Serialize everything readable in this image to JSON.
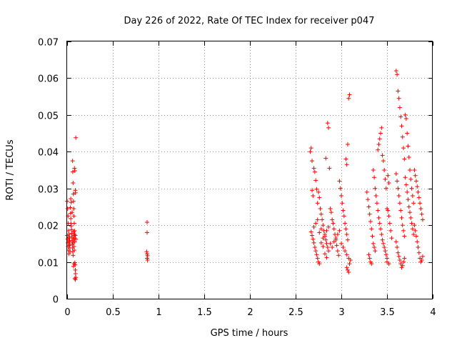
{
  "chart_data": {
    "type": "scatter",
    "title": "Day 226 of 2022, Rate Of TEC Index for receiver p047",
    "xlabel": "GPS time / hours",
    "ylabel": "ROTI / TECUs",
    "xlim": [
      0,
      4
    ],
    "ylim": [
      0,
      0.07
    ],
    "grid": true,
    "marker": "plus",
    "color": "#ff0000",
    "xticks": [
      {
        "value": 0,
        "label": "0"
      },
      {
        "value": 0.5,
        "label": "0.5"
      },
      {
        "value": 1,
        "label": "1"
      },
      {
        "value": 1.5,
        "label": "1.5"
      },
      {
        "value": 2,
        "label": "2"
      },
      {
        "value": 2.5,
        "label": "2.5"
      },
      {
        "value": 3,
        "label": "3"
      },
      {
        "value": 3.5,
        "label": "3.5"
      },
      {
        "value": 4,
        "label": "4"
      }
    ],
    "yticks": [
      {
        "value": 0,
        "label": "0"
      },
      {
        "value": 0.01,
        "label": "0.01"
      },
      {
        "value": 0.02,
        "label": "0.02"
      },
      {
        "value": 0.03,
        "label": "0.03"
      },
      {
        "value": 0.04,
        "label": "0.04"
      },
      {
        "value": 0.05,
        "label": "0.05"
      },
      {
        "value": 0.06,
        "label": "0.06"
      },
      {
        "value": 0.07,
        "label": "0.07"
      }
    ],
    "series": [
      {
        "name": "ROTI",
        "points": [
          [
            0.0,
            0.0265
          ],
          [
            0.005,
            0.0245
          ],
          [
            0.01,
            0.0225
          ],
          [
            0.012,
            0.0205
          ],
          [
            0.015,
            0.0185
          ],
          [
            0.02,
            0.0165
          ],
          [
            0.022,
            0.0155
          ],
          [
            0.025,
            0.0145
          ],
          [
            0.03,
            0.0138
          ],
          [
            0.032,
            0.0128
          ],
          [
            0.0,
            0.0172
          ],
          [
            0.005,
            0.0162
          ],
          [
            0.008,
            0.0152
          ],
          [
            0.01,
            0.0142
          ],
          [
            0.015,
            0.0132
          ],
          [
            0.018,
            0.0122
          ],
          [
            0.02,
            0.0175
          ],
          [
            0.025,
            0.0168
          ],
          [
            0.028,
            0.0158
          ],
          [
            0.03,
            0.0148
          ],
          [
            0.035,
            0.0248
          ],
          [
            0.038,
            0.0232
          ],
          [
            0.04,
            0.0218
          ],
          [
            0.042,
            0.0205
          ],
          [
            0.045,
            0.0198
          ],
          [
            0.048,
            0.0188
          ],
          [
            0.05,
            0.0178
          ],
          [
            0.052,
            0.0168
          ],
          [
            0.055,
            0.0158
          ],
          [
            0.058,
            0.0148
          ],
          [
            0.06,
            0.0138
          ],
          [
            0.062,
            0.0128
          ],
          [
            0.065,
            0.0152
          ],
          [
            0.068,
            0.0162
          ],
          [
            0.07,
            0.0172
          ],
          [
            0.072,
            0.0182
          ],
          [
            0.075,
            0.0142
          ],
          [
            0.078,
            0.0132
          ],
          [
            0.08,
            0.0165
          ],
          [
            0.083,
            0.0155
          ],
          [
            0.06,
            0.0375
          ],
          [
            0.062,
            0.0345
          ],
          [
            0.065,
            0.0315
          ],
          [
            0.068,
            0.0285
          ],
          [
            0.07,
            0.0265
          ],
          [
            0.073,
            0.0245
          ],
          [
            0.075,
            0.0225
          ],
          [
            0.078,
            0.0205
          ],
          [
            0.08,
            0.0185
          ],
          [
            0.082,
            0.0175
          ],
          [
            0.08,
            0.0355
          ],
          [
            0.085,
            0.0348
          ],
          [
            0.09,
            0.0295
          ],
          [
            0.092,
            0.0288
          ],
          [
            0.095,
            0.0438
          ],
          [
            0.085,
            0.0098
          ],
          [
            0.088,
            0.0092
          ],
          [
            0.09,
            0.0078
          ],
          [
            0.092,
            0.0068
          ],
          [
            0.095,
            0.0058
          ],
          [
            0.085,
            0.0055
          ],
          [
            0.09,
            0.0052
          ],
          [
            0.075,
            0.0095
          ],
          [
            0.07,
            0.0088
          ],
          [
            0.065,
            0.0118
          ],
          [
            0.055,
            0.0235
          ],
          [
            0.045,
            0.0262
          ],
          [
            0.04,
            0.0272
          ],
          [
            0.09,
            0.0172
          ],
          [
            0.095,
            0.0162
          ],
          [
            0.875,
            0.0208
          ],
          [
            0.875,
            0.018
          ],
          [
            0.87,
            0.0128
          ],
          [
            0.875,
            0.0122
          ],
          [
            0.88,
            0.0117
          ],
          [
            0.875,
            0.011
          ],
          [
            0.88,
            0.0105
          ],
          [
            2.66,
            0.04
          ],
          [
            2.67,
            0.041
          ],
          [
            2.68,
            0.0375
          ],
          [
            2.7,
            0.0355
          ],
          [
            2.71,
            0.0345
          ],
          [
            2.72,
            0.0322
          ],
          [
            2.73,
            0.0298
          ],
          [
            2.68,
            0.0295
          ],
          [
            2.69,
            0.028
          ],
          [
            2.74,
            0.026
          ],
          [
            2.67,
            0.0182
          ],
          [
            2.68,
            0.0172
          ],
          [
            2.69,
            0.0162
          ],
          [
            2.7,
            0.0152
          ],
          [
            2.71,
            0.014
          ],
          [
            2.72,
            0.013
          ],
          [
            2.73,
            0.012
          ],
          [
            2.74,
            0.011
          ],
          [
            2.75,
            0.01
          ],
          [
            2.76,
            0.0095
          ],
          [
            2.77,
            0.0245
          ],
          [
            2.78,
            0.023
          ],
          [
            2.79,
            0.0215
          ],
          [
            2.8,
            0.02
          ],
          [
            2.81,
            0.0185
          ],
          [
            2.82,
            0.017
          ],
          [
            2.83,
            0.016
          ],
          [
            2.84,
            0.015
          ],
          [
            2.85,
            0.014
          ],
          [
            2.86,
            0.013
          ],
          [
            2.75,
            0.029
          ],
          [
            2.76,
            0.0275
          ],
          [
            2.78,
            0.0152
          ],
          [
            2.8,
            0.0142
          ],
          [
            2.82,
            0.0122
          ],
          [
            2.84,
            0.0112
          ],
          [
            2.83,
            0.0382
          ],
          [
            2.85,
            0.0478
          ],
          [
            2.86,
            0.0465
          ],
          [
            2.87,
            0.0355
          ],
          [
            2.88,
            0.0245
          ],
          [
            2.89,
            0.0235
          ],
          [
            2.9,
            0.0215
          ],
          [
            2.91,
            0.0205
          ],
          [
            2.92,
            0.019
          ],
          [
            2.93,
            0.0175
          ],
          [
            2.94,
            0.016
          ],
          [
            2.95,
            0.0145
          ],
          [
            2.96,
            0.013
          ],
          [
            2.97,
            0.0118
          ],
          [
            2.98,
            0.032
          ],
          [
            2.99,
            0.03
          ],
          [
            3.0,
            0.028
          ],
          [
            3.01,
            0.026
          ],
          [
            3.02,
            0.024
          ],
          [
            3.03,
            0.0225
          ],
          [
            3.04,
            0.0205
          ],
          [
            3.05,
            0.019
          ],
          [
            3.06,
            0.0175
          ],
          [
            3.07,
            0.016
          ],
          [
            3.05,
            0.038
          ],
          [
            3.06,
            0.0365
          ],
          [
            3.07,
            0.042
          ],
          [
            3.08,
            0.0545
          ],
          [
            3.09,
            0.0555
          ],
          [
            3.06,
            0.0085
          ],
          [
            3.07,
            0.0078
          ],
          [
            3.08,
            0.0072
          ],
          [
            3.09,
            0.0095
          ],
          [
            3.1,
            0.0105
          ],
          [
            2.7,
            0.0195
          ],
          [
            2.72,
            0.0205
          ],
          [
            2.74,
            0.0215
          ],
          [
            2.76,
            0.018
          ],
          [
            2.78,
            0.019
          ],
          [
            2.8,
            0.0165
          ],
          [
            2.82,
            0.0175
          ],
          [
            2.84,
            0.0185
          ],
          [
            2.86,
            0.0195
          ],
          [
            2.88,
            0.015
          ],
          [
            2.9,
            0.014
          ],
          [
            2.92,
            0.0155
          ],
          [
            2.94,
            0.0165
          ],
          [
            2.96,
            0.0175
          ],
          [
            2.98,
            0.0185
          ],
          [
            3.0,
            0.015
          ],
          [
            3.02,
            0.014
          ],
          [
            3.04,
            0.013
          ],
          [
            3.06,
            0.012
          ],
          [
            3.08,
            0.011
          ],
          [
            3.28,
            0.029
          ],
          [
            3.29,
            0.027
          ],
          [
            3.3,
            0.025
          ],
          [
            3.31,
            0.023
          ],
          [
            3.32,
            0.021
          ],
          [
            3.33,
            0.019
          ],
          [
            3.34,
            0.017
          ],
          [
            3.35,
            0.015
          ],
          [
            3.36,
            0.014
          ],
          [
            3.37,
            0.013
          ],
          [
            3.3,
            0.012
          ],
          [
            3.31,
            0.011
          ],
          [
            3.32,
            0.01
          ],
          [
            3.33,
            0.0095
          ],
          [
            3.35,
            0.035
          ],
          [
            3.36,
            0.033
          ],
          [
            3.37,
            0.03
          ],
          [
            3.38,
            0.028
          ],
          [
            3.39,
            0.026
          ],
          [
            3.4,
            0.024
          ],
          [
            3.4,
            0.0405
          ],
          [
            3.41,
            0.042
          ],
          [
            3.42,
            0.0435
          ],
          [
            3.43,
            0.045
          ],
          [
            3.44,
            0.0465
          ],
          [
            3.45,
            0.039
          ],
          [
            3.46,
            0.0375
          ],
          [
            3.47,
            0.035
          ],
          [
            3.48,
            0.0325
          ],
          [
            3.49,
            0.03
          ],
          [
            3.41,
            0.022
          ],
          [
            3.42,
            0.0205
          ],
          [
            3.43,
            0.019
          ],
          [
            3.44,
            0.0175
          ],
          [
            3.45,
            0.016
          ],
          [
            3.46,
            0.015
          ],
          [
            3.47,
            0.014
          ],
          [
            3.48,
            0.013
          ],
          [
            3.49,
            0.012
          ],
          [
            3.5,
            0.011
          ],
          [
            3.5,
            0.0245
          ],
          [
            3.51,
            0.024
          ],
          [
            3.52,
            0.0225
          ],
          [
            3.53,
            0.0205
          ],
          [
            3.54,
            0.0185
          ],
          [
            3.55,
            0.0165
          ],
          [
            3.51,
            0.0335
          ],
          [
            3.52,
            0.0315
          ],
          [
            3.5,
            0.01
          ],
          [
            3.52,
            0.0095
          ],
          [
            3.6,
            0.062
          ],
          [
            3.61,
            0.061
          ],
          [
            3.62,
            0.0565
          ],
          [
            3.63,
            0.0545
          ],
          [
            3.64,
            0.052
          ],
          [
            3.65,
            0.0495
          ],
          [
            3.66,
            0.047
          ],
          [
            3.67,
            0.044
          ],
          [
            3.68,
            0.041
          ],
          [
            3.69,
            0.038
          ],
          [
            3.7,
            0.05
          ],
          [
            3.71,
            0.049
          ],
          [
            3.72,
            0.045
          ],
          [
            3.73,
            0.0415
          ],
          [
            3.74,
            0.0385
          ],
          [
            3.75,
            0.035
          ],
          [
            3.76,
            0.0325
          ],
          [
            3.77,
            0.03
          ],
          [
            3.78,
            0.028
          ],
          [
            3.79,
            0.026
          ],
          [
            3.6,
            0.034
          ],
          [
            3.61,
            0.032
          ],
          [
            3.62,
            0.03
          ],
          [
            3.63,
            0.028
          ],
          [
            3.64,
            0.026
          ],
          [
            3.65,
            0.024
          ],
          [
            3.66,
            0.022
          ],
          [
            3.67,
            0.02
          ],
          [
            3.68,
            0.0185
          ],
          [
            3.69,
            0.017
          ],
          [
            3.6,
            0.0155
          ],
          [
            3.61,
            0.014
          ],
          [
            3.62,
            0.0125
          ],
          [
            3.63,
            0.0115
          ],
          [
            3.64,
            0.0105
          ],
          [
            3.65,
            0.0095
          ],
          [
            3.66,
            0.0085
          ],
          [
            3.67,
            0.009
          ],
          [
            3.68,
            0.01
          ],
          [
            3.69,
            0.011
          ],
          [
            3.7,
            0.033
          ],
          [
            3.71,
            0.031
          ],
          [
            3.72,
            0.029
          ],
          [
            3.73,
            0.027
          ],
          [
            3.74,
            0.025
          ],
          [
            3.75,
            0.0235
          ],
          [
            3.76,
            0.022
          ],
          [
            3.77,
            0.0205
          ],
          [
            3.78,
            0.019
          ],
          [
            3.79,
            0.0175
          ],
          [
            3.8,
            0.035
          ],
          [
            3.81,
            0.0335
          ],
          [
            3.82,
            0.032
          ],
          [
            3.83,
            0.0305
          ],
          [
            3.84,
            0.029
          ],
          [
            3.85,
            0.0275
          ],
          [
            3.86,
            0.026
          ],
          [
            3.87,
            0.0245
          ],
          [
            3.88,
            0.023
          ],
          [
            3.89,
            0.0215
          ],
          [
            3.8,
            0.02
          ],
          [
            3.81,
            0.0185
          ],
          [
            3.82,
            0.017
          ],
          [
            3.83,
            0.0155
          ],
          [
            3.84,
            0.014
          ],
          [
            3.85,
            0.0125
          ],
          [
            3.86,
            0.011
          ],
          [
            3.87,
            0.01
          ],
          [
            3.88,
            0.0105
          ],
          [
            3.89,
            0.0115
          ]
        ]
      }
    ]
  }
}
